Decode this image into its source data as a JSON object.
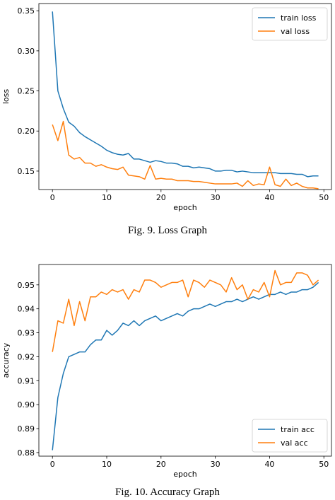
{
  "captions": {
    "fig9": "Fig. 9.  Loss Graph",
    "fig10": "Fig. 10.  Accuracy Graph"
  },
  "colors": {
    "train": "#1f77b4",
    "val": "#ff7f0e"
  },
  "chart_data": [
    {
      "type": "line",
      "xlabel": "epoch",
      "ylabel": "loss",
      "xlim": [
        -2.5,
        51.4
      ],
      "ylim": [
        0.127,
        0.359
      ],
      "xticks": [
        0,
        10,
        20,
        30,
        40,
        50
      ],
      "yticks": [
        0.15,
        0.2,
        0.25,
        0.3,
        0.35
      ],
      "ytick_labels": [
        "0.15",
        "0.20",
        "0.25",
        "0.30",
        "0.35"
      ],
      "grid": false,
      "legend": "top-right",
      "series": [
        {
          "name": "train loss",
          "color": "#1f77b4",
          "values": [
            0.349,
            0.25,
            0.228,
            0.211,
            0.206,
            0.198,
            0.193,
            0.189,
            0.185,
            0.181,
            0.176,
            0.173,
            0.171,
            0.17,
            0.172,
            0.165,
            0.165,
            0.163,
            0.161,
            0.163,
            0.162,
            0.16,
            0.16,
            0.159,
            0.156,
            0.156,
            0.154,
            0.155,
            0.154,
            0.153,
            0.15,
            0.15,
            0.151,
            0.151,
            0.149,
            0.15,
            0.149,
            0.148,
            0.148,
            0.148,
            0.148,
            0.148,
            0.147,
            0.147,
            0.147,
            0.146,
            0.146,
            0.143,
            0.144,
            0.144
          ]
        },
        {
          "name": "val loss",
          "color": "#ff7f0e",
          "values": [
            0.208,
            0.188,
            0.212,
            0.17,
            0.165,
            0.167,
            0.16,
            0.16,
            0.156,
            0.158,
            0.155,
            0.153,
            0.152,
            0.155,
            0.145,
            0.144,
            0.143,
            0.14,
            0.157,
            0.14,
            0.141,
            0.14,
            0.14,
            0.138,
            0.138,
            0.138,
            0.137,
            0.137,
            0.136,
            0.135,
            0.134,
            0.134,
            0.134,
            0.134,
            0.135,
            0.131,
            0.138,
            0.132,
            0.134,
            0.133,
            0.155,
            0.133,
            0.131,
            0.14,
            0.132,
            0.135,
            0.131,
            0.129,
            0.129,
            0.128
          ]
        }
      ]
    },
    {
      "type": "line",
      "xlabel": "epoch",
      "ylabel": "accuracy",
      "xlim": [
        -2.5,
        51.4
      ],
      "ylim": [
        0.8785,
        0.9585
      ],
      "xticks": [
        0,
        10,
        20,
        30,
        40,
        50
      ],
      "yticks": [
        0.88,
        0.89,
        0.9,
        0.91,
        0.92,
        0.93,
        0.94,
        0.95
      ],
      "ytick_labels": [
        "0.88",
        "0.89",
        "0.90",
        "0.91",
        "0.92",
        "0.93",
        "0.94",
        "0.95"
      ],
      "grid": false,
      "legend": "bottom-right",
      "series": [
        {
          "name": "train acc",
          "color": "#1f77b4",
          "values": [
            0.881,
            0.903,
            0.913,
            0.92,
            0.921,
            0.922,
            0.922,
            0.925,
            0.927,
            0.927,
            0.931,
            0.929,
            0.931,
            0.934,
            0.933,
            0.935,
            0.933,
            0.935,
            0.936,
            0.937,
            0.935,
            0.936,
            0.937,
            0.938,
            0.937,
            0.939,
            0.94,
            0.94,
            0.941,
            0.942,
            0.941,
            0.942,
            0.943,
            0.943,
            0.944,
            0.943,
            0.944,
            0.945,
            0.944,
            0.945,
            0.946,
            0.946,
            0.947,
            0.946,
            0.947,
            0.947,
            0.948,
            0.948,
            0.949,
            0.951
          ]
        },
        {
          "name": "val acc",
          "color": "#ff7f0e",
          "values": [
            0.922,
            0.935,
            0.934,
            0.944,
            0.933,
            0.943,
            0.935,
            0.945,
            0.945,
            0.947,
            0.946,
            0.948,
            0.947,
            0.948,
            0.944,
            0.948,
            0.947,
            0.952,
            0.952,
            0.951,
            0.949,
            0.95,
            0.951,
            0.951,
            0.952,
            0.945,
            0.952,
            0.951,
            0.949,
            0.952,
            0.951,
            0.95,
            0.947,
            0.953,
            0.948,
            0.95,
            0.944,
            0.948,
            0.947,
            0.951,
            0.945,
            0.956,
            0.95,
            0.951,
            0.951,
            0.955,
            0.955,
            0.954,
            0.95,
            0.952
          ]
        }
      ]
    }
  ]
}
